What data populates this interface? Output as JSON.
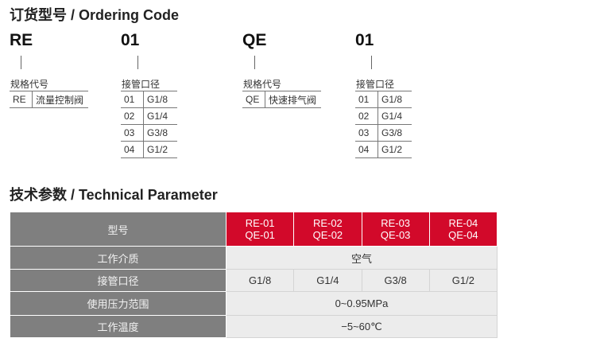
{
  "ordering": {
    "title": "订货型号 / Ordering Code",
    "groups": [
      {
        "code": "RE",
        "label": "规格代号",
        "rows": [
          [
            "RE",
            "流量控制阀"
          ]
        ]
      },
      {
        "code": "01",
        "label": "接管口径",
        "rows": [
          [
            "01",
            "G1/8"
          ],
          [
            "02",
            "G1/4"
          ],
          [
            "03",
            "G3/8"
          ],
          [
            "04",
            "G1/2"
          ]
        ]
      },
      {
        "code": "QE",
        "label": "规格代号",
        "rows": [
          [
            "QE",
            "快速排气阀"
          ]
        ]
      },
      {
        "code": "01",
        "label": "接管口径",
        "rows": [
          [
            "01",
            "G1/8"
          ],
          [
            "02",
            "G1/4"
          ],
          [
            "03",
            "G3/8"
          ],
          [
            "04",
            "G1/2"
          ]
        ]
      }
    ]
  },
  "params": {
    "title": "技术参数 / Technical Parameter",
    "model_label": "型号",
    "models": [
      [
        "RE-01",
        "QE-01"
      ],
      [
        "RE-02",
        "QE-02"
      ],
      [
        "RE-03",
        "QE-03"
      ],
      [
        "RE-04",
        "QE-04"
      ]
    ],
    "medium_label": "工作介质",
    "medium": "空气",
    "port_label": "接管口径",
    "ports": [
      "G1/8",
      "G1/4",
      "G3/8",
      "G1/2"
    ],
    "pressure_label": "使用压力范围",
    "pressure": "0~0.95MPa",
    "temp_label": "工作温度",
    "temp": "−5~60℃"
  },
  "colors": {
    "header_red": "#d2092a",
    "label_gray": "#7f7f7f",
    "value_bg": "#ececec"
  }
}
